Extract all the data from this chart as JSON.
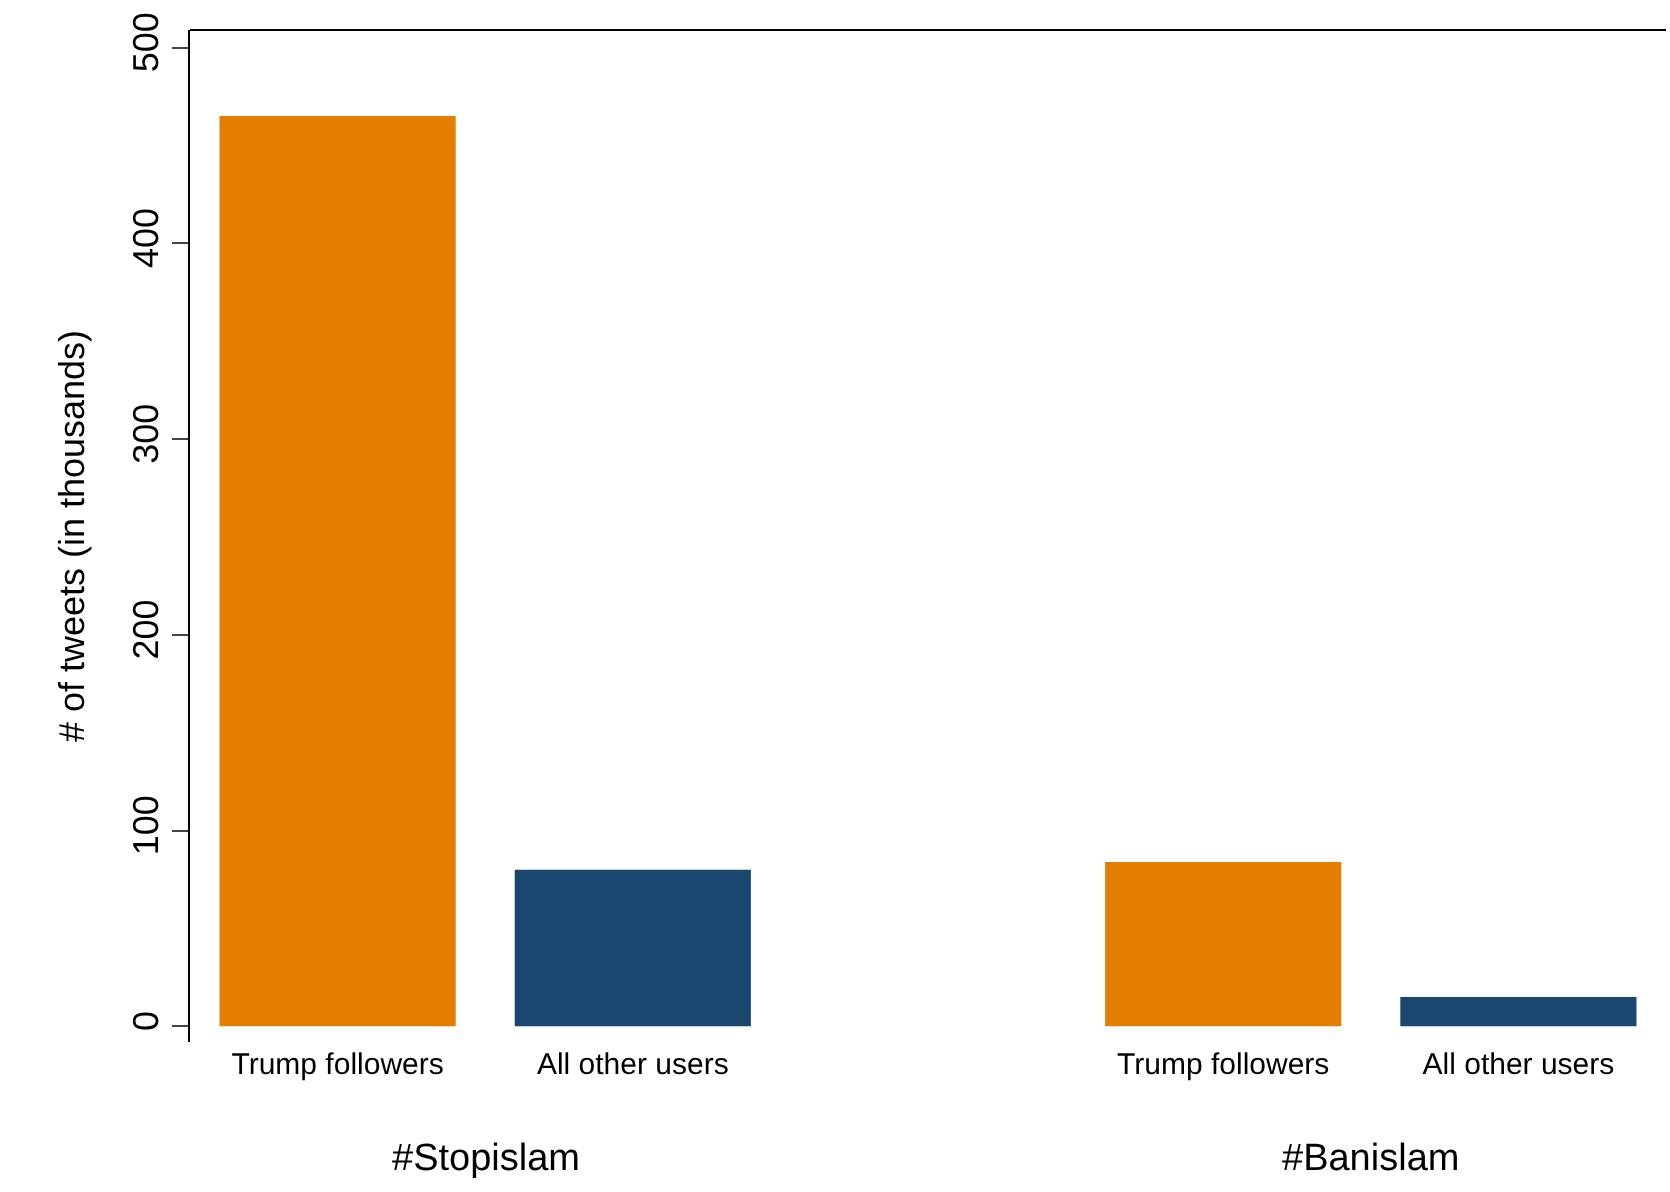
{
  "chart_data": {
    "type": "bar",
    "ylabel": "# of tweets (in thousands)",
    "categories": [
      "Trump followers",
      "All other users",
      null,
      "Trump followers",
      "All other users"
    ],
    "values": [
      465,
      80,
      null,
      84,
      15
    ],
    "colors": [
      "#e37e00",
      "#1a476f",
      null,
      "#e37e00",
      "#1a476f"
    ],
    "ylim": [
      -8,
      509
    ],
    "yticks": [
      0,
      100,
      200,
      300,
      400,
      500
    ],
    "legend": false,
    "annotations": [
      "#Stopislam",
      "#Banislam"
    ]
  }
}
